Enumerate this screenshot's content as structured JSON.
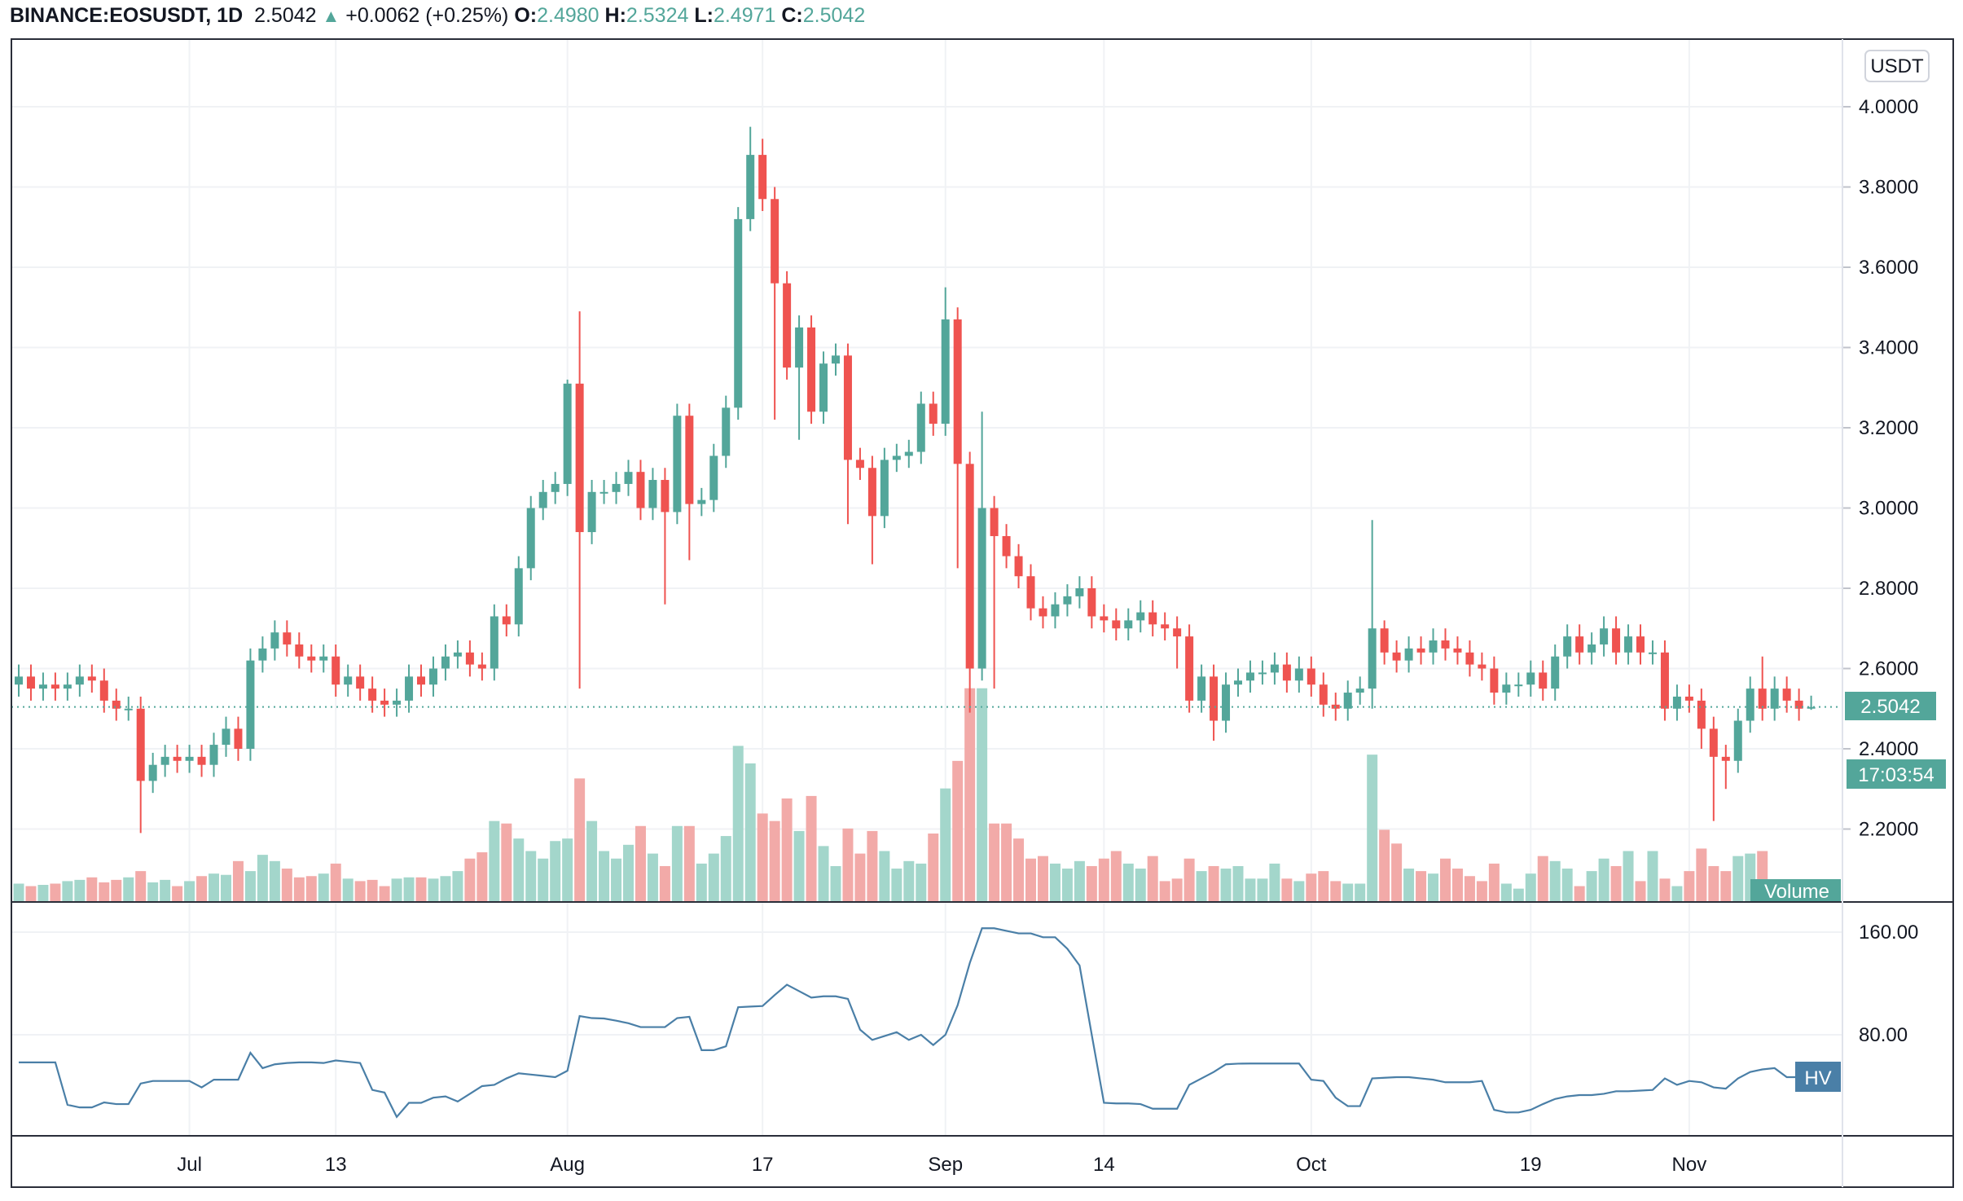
{
  "header": {
    "symbol": "BINANCE:EOSUSDT, 1D",
    "last": "2.5042",
    "change": "+0.0062 (+0.25%)",
    "o_label": "O:",
    "o": "2.4980",
    "h_label": "H:",
    "h": "2.5324",
    "l_label": "L:",
    "l": "2.4971",
    "c_label": "C:",
    "c": "2.5042"
  },
  "currency_button": "USDT",
  "price_tag": "2.5042",
  "countdown_tag": "17:03:54",
  "volume_label": "Volume",
  "hv_label": "HV",
  "colors": {
    "up": "#53a69a",
    "down": "#ef5350",
    "up_vol": "#a3d6cb",
    "down_vol": "#f2aaa8",
    "hv": "#4a7fa7",
    "grid": "#f0f2f5"
  },
  "chart_data": {
    "type": "candlestick",
    "interval": "1D",
    "first_open": 2.56,
    "price_ticks": [
      "4.0000",
      "3.8000",
      "3.6000",
      "3.4000",
      "3.2000",
      "3.0000",
      "2.8000",
      "2.6000",
      "2.4000",
      "2.2000"
    ],
    "hv_ticks": [
      "160.00",
      "80.00"
    ],
    "time_labels": [
      {
        "label": "Jul",
        "day": 14
      },
      {
        "label": "13",
        "day": 26
      },
      {
        "label": "Aug",
        "day": 45
      },
      {
        "label": "17",
        "day": 61
      },
      {
        "label": "Sep",
        "day": 76
      },
      {
        "label": "14",
        "day": 89
      },
      {
        "label": "Oct",
        "day": 106
      },
      {
        "label": "19",
        "day": 124
      },
      {
        "label": "Nov",
        "day": 137
      }
    ],
    "close": [
      2.58,
      2.55,
      2.56,
      2.55,
      2.56,
      2.58,
      2.57,
      2.52,
      2.5,
      2.5,
      2.32,
      2.36,
      2.38,
      2.37,
      2.38,
      2.36,
      2.41,
      2.45,
      2.4,
      2.62,
      2.65,
      2.69,
      2.66,
      2.63,
      2.62,
      2.63,
      2.56,
      2.58,
      2.55,
      2.52,
      2.51,
      2.52,
      2.58,
      2.56,
      2.6,
      2.63,
      2.64,
      2.61,
      2.6,
      2.73,
      2.71,
      2.85,
      3.0,
      3.04,
      3.06,
      3.31,
      2.94,
      3.04,
      3.04,
      3.06,
      3.09,
      3.0,
      3.07,
      2.99,
      3.23,
      3.01,
      3.02,
      3.13,
      3.25,
      3.72,
      3.88,
      3.77,
      3.56,
      3.35,
      3.45,
      3.24,
      3.36,
      3.38,
      3.12,
      3.1,
      2.98,
      3.12,
      3.13,
      3.14,
      3.26,
      3.21,
      3.47,
      3.11,
      2.6,
      3.0,
      2.93,
      2.88,
      2.83,
      2.75,
      2.73,
      2.76,
      2.78,
      2.8,
      2.73,
      2.72,
      2.7,
      2.72,
      2.74,
      2.71,
      2.7,
      2.68,
      2.52,
      2.58,
      2.47,
      2.56,
      2.57,
      2.59,
      2.59,
      2.61,
      2.57,
      2.6,
      2.56,
      2.51,
      2.5,
      2.54,
      2.55,
      2.7,
      2.64,
      2.62,
      2.65,
      2.64,
      2.67,
      2.65,
      2.64,
      2.61,
      2.6,
      2.54,
      2.56,
      2.56,
      2.59,
      2.55,
      2.63,
      2.68,
      2.64,
      2.66,
      2.7,
      2.64,
      2.68,
      2.64,
      2.64,
      2.5,
      2.53,
      2.52,
      2.45,
      2.38,
      2.37,
      2.47,
      2.55,
      2.5,
      2.55,
      2.52,
      2.5,
      2.5042
    ],
    "wick_overrides": {
      "10": {
        "low": 2.19
      },
      "45": {
        "high": 3.32
      },
      "46": {
        "high": 3.49,
        "low": 2.55
      },
      "53": {
        "low": 2.76
      },
      "55": {
        "low": 2.87
      },
      "60": {
        "high": 3.95
      },
      "61": {
        "high": 3.92
      },
      "62": {
        "low": 3.22
      },
      "64": {
        "low": 3.17
      },
      "68": {
        "low": 2.96
      },
      "70": {
        "low": 2.86
      },
      "76": {
        "high": 3.55
      },
      "77": {
        "high": 3.5,
        "low": 2.85
      },
      "78": {
        "low": 2.49
      },
      "79": {
        "high": 3.24
      },
      "80": {
        "low": 2.55
      },
      "95": {
        "low": 2.6
      },
      "98": {
        "low": 2.42
      },
      "111": {
        "high": 2.97,
        "low": 2.5
      },
      "112": {
        "high": 2.72
      },
      "138": {
        "low": 2.4
      },
      "139": {
        "low": 2.22
      },
      "140": {
        "low": 2.3
      },
      "143": {
        "high": 2.63
      },
      "147": {
        "high": 2.5324,
        "low": 2.4971
      }
    },
    "volume_relative": [
      14,
      12,
      13,
      14,
      16,
      17,
      19,
      15,
      17,
      19,
      24,
      15,
      17,
      12,
      16,
      20,
      22,
      21,
      32,
      24,
      37,
      32,
      26,
      19,
      20,
      22,
      30,
      18,
      16,
      17,
      12,
      18,
      19,
      19,
      18,
      20,
      24,
      34,
      39,
      64,
      62,
      50,
      40,
      34,
      48,
      50,
      98,
      64,
      40,
      34,
      45,
      60,
      38,
      28,
      60,
      60,
      30,
      38,
      52,
      124,
      110,
      70,
      64,
      82,
      56,
      84,
      44,
      28,
      58,
      38,
      56,
      40,
      26,
      32,
      30,
      54,
      90,
      112,
      170,
      170,
      62,
      62,
      50,
      34,
      36,
      30,
      26,
      32,
      28,
      34,
      40,
      30,
      26,
      36,
      16,
      18,
      34,
      24,
      28,
      26,
      28,
      18,
      18,
      30,
      18,
      16,
      22,
      24,
      16,
      14,
      14,
      117,
      57,
      46,
      26,
      24,
      22,
      34,
      26,
      20,
      16,
      30,
      14,
      10,
      22,
      36,
      32,
      26,
      12,
      24,
      34,
      28,
      40,
      16,
      40,
      18,
      12,
      24,
      42,
      28,
      24,
      36,
      38,
      40,
      8,
      6,
      4,
      3
    ],
    "hv": [
      58.5,
      58.5,
      58.5,
      58.5,
      25.4,
      23.4,
      23.4,
      27.3,
      26,
      26,
      42,
      44,
      44,
      44,
      44,
      39,
      45,
      45,
      45,
      66,
      54,
      57,
      58,
      58.5,
      58.5,
      58,
      60,
      59,
      58,
      37,
      35,
      16,
      27,
      27,
      31,
      32,
      28,
      34,
      40,
      41,
      46,
      50,
      49,
      48,
      47,
      52,
      94.6,
      93,
      92.7,
      91,
      89,
      86,
      86,
      86,
      93,
      94,
      68,
      68,
      71,
      101.5,
      102,
      102.4,
      111,
      119,
      114,
      109,
      110,
      110,
      108,
      84,
      76,
      79,
      82,
      76,
      80,
      72,
      80,
      103,
      136,
      163,
      163,
      161,
      159,
      159,
      156,
      156,
      147,
      134,
      80,
      27,
      26.5,
      26.5,
      26,
      22.4,
      22.4,
      22.4,
      41,
      46,
      51,
      57,
      57.5,
      57.6,
      57.6,
      57.6,
      57.6,
      57.6,
      45,
      44,
      31,
      24.4,
      24.4,
      46,
      46.5,
      47,
      47,
      46,
      45,
      43,
      43,
      43,
      44,
      21.5,
      19.5,
      19.5,
      21.5,
      26,
      30,
      32,
      33,
      33,
      34,
      36,
      36,
      36.5,
      37,
      46,
      41,
      44,
      43,
      39,
      38,
      46,
      51,
      53,
      54,
      47,
      47,
      47
    ],
    "price_range": [
      2.05,
      4.1
    ],
    "hv_range": [
      0,
      185
    ],
    "grid": true
  }
}
